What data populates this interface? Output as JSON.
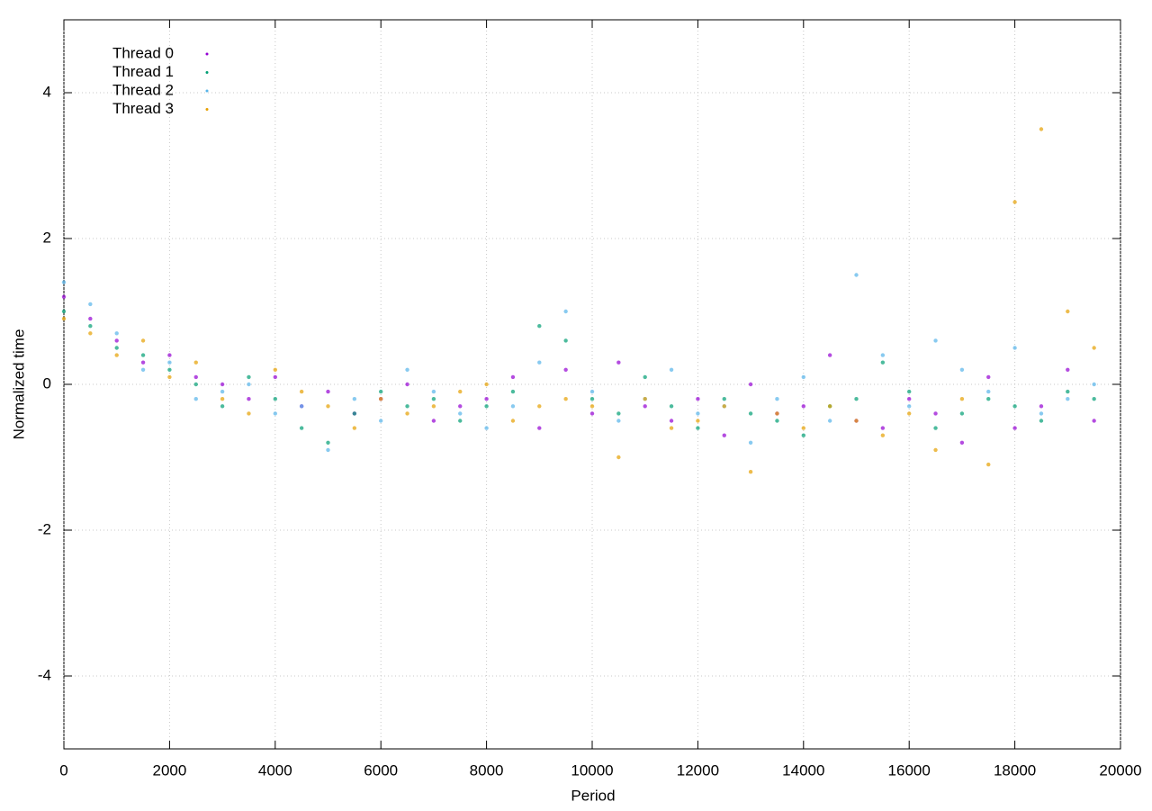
{
  "chart_data": {
    "type": "scatter",
    "x_label": "Period",
    "y_label": "Normalized time",
    "x": [
      0,
      500,
      1000,
      1500,
      2000,
      2500,
      3000,
      3500,
      4000,
      4500,
      5000,
      5500,
      6000,
      6500,
      7000,
      7500,
      8000,
      8500,
      9000,
      9500,
      10000,
      10500,
      11000,
      11500,
      12000,
      12500,
      13000,
      13500,
      14000,
      14500,
      15000,
      15500,
      16000,
      16500,
      17000,
      17500,
      18000,
      18500,
      19000,
      19500
    ],
    "series": [
      {
        "name": "Thread 0",
        "color": "#9400d3",
        "values": [
          1.2,
          0.9,
          0.6,
          0.3,
          0.4,
          0.1,
          0.0,
          -0.2,
          0.1,
          -0.3,
          -0.1,
          -0.4,
          -0.2,
          0.0,
          -0.5,
          -0.3,
          -0.2,
          0.1,
          -0.6,
          0.2,
          -0.4,
          0.3,
          -0.3,
          -0.5,
          -0.2,
          -0.7,
          0.0,
          -0.4,
          -0.3,
          0.4,
          -0.5,
          -0.6,
          -0.2,
          -0.4,
          -0.8,
          0.1,
          -0.6,
          -0.3,
          0.2,
          -0.5
        ]
      },
      {
        "name": "Thread 1",
        "color": "#009e73",
        "values": [
          1.0,
          0.8,
          0.5,
          0.4,
          0.2,
          0.0,
          -0.3,
          0.1,
          -0.2,
          -0.6,
          -0.8,
          -0.4,
          -0.1,
          -0.3,
          -0.2,
          -0.5,
          -0.3,
          -0.1,
          0.8,
          0.6,
          -0.2,
          -0.4,
          0.1,
          -0.3,
          -0.6,
          -0.2,
          -0.4,
          -0.5,
          -0.7,
          -0.3,
          -0.2,
          0.3,
          -0.1,
          -0.6,
          -0.4,
          -0.2,
          -0.3,
          -0.5,
          -0.1,
          -0.2
        ]
      },
      {
        "name": "Thread 2",
        "color": "#56b4e9",
        "values": [
          1.4,
          1.1,
          0.7,
          0.2,
          0.3,
          -0.2,
          -0.1,
          0.0,
          -0.4,
          -0.3,
          -0.9,
          -0.2,
          -0.5,
          0.2,
          -0.1,
          -0.4,
          -0.6,
          -0.3,
          0.3,
          1.0,
          -0.1,
          -0.5,
          -0.2,
          0.2,
          -0.4,
          -0.3,
          -0.8,
          -0.2,
          0.1,
          -0.5,
          1.5,
          0.4,
          -0.3,
          0.6,
          0.2,
          -0.1,
          0.5,
          -0.4,
          -0.2,
          0.0
        ]
      },
      {
        "name": "Thread 3",
        "color": "#e69f00",
        "values": [
          0.9,
          0.7,
          0.4,
          0.6,
          0.1,
          0.3,
          -0.2,
          -0.4,
          0.2,
          -0.1,
          -0.3,
          -0.6,
          -0.2,
          -0.4,
          -0.3,
          -0.1,
          0.0,
          -0.5,
          -0.3,
          -0.2,
          -0.3,
          -1.0,
          -0.2,
          -0.6,
          -0.5,
          -0.3,
          -1.2,
          -0.4,
          -0.6,
          -0.3,
          -0.5,
          -0.7,
          -0.4,
          -0.9,
          -0.2,
          -1.1,
          2.5,
          3.5,
          1.0,
          0.5
        ]
      }
    ],
    "xlim": [
      0,
      20000
    ],
    "ylim": [
      -5,
      5
    ],
    "xticks": [
      0,
      2000,
      4000,
      6000,
      8000,
      10000,
      12000,
      14000,
      16000,
      18000,
      20000
    ],
    "yticks": [
      -4,
      -2,
      0,
      2,
      4
    ],
    "grid": true,
    "legend": "top-left"
  }
}
